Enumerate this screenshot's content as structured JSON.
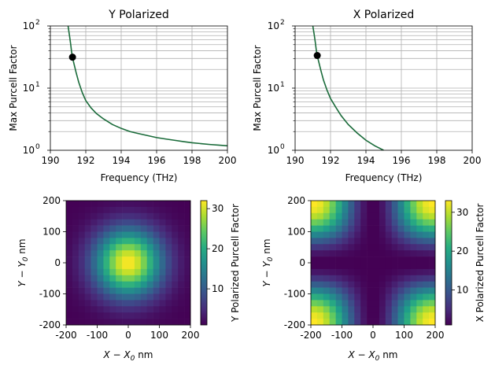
{
  "chart_data": [
    {
      "type": "line",
      "title": "Y Polarized",
      "xlabel": "Frequency (THz)",
      "ylabel": "Max Purcell Factor",
      "xlim": [
        190,
        200
      ],
      "ylim": [
        1,
        100
      ],
      "yscale": "log",
      "grid": "both (major and minor)",
      "xticks": [
        "190",
        "192",
        "194",
        "196",
        "198",
        "200"
      ],
      "yticks": [
        "10^0",
        "10^1",
        "10^2"
      ],
      "line_color": "#1a6b3a",
      "series": [
        {
          "x": [
            191.0,
            191.08,
            191.15,
            191.2,
            191.3,
            191.45,
            191.6,
            191.8,
            192.0,
            192.3,
            192.6,
            193.0,
            193.5,
            194.0,
            194.5,
            195.0,
            195.5,
            196.0,
            196.5,
            197.0,
            197.5,
            198.0,
            198.5,
            199.0,
            199.5,
            200.0
          ],
          "y": [
            100,
            70,
            50,
            38,
            27,
            18,
            12.5,
            8.5,
            6.3,
            4.8,
            3.9,
            3.2,
            2.6,
            2.25,
            2.0,
            1.85,
            1.72,
            1.6,
            1.52,
            1.45,
            1.38,
            1.32,
            1.28,
            1.24,
            1.21,
            1.18
          ]
        }
      ],
      "marker": {
        "x": 191.25,
        "y": 31.5
      }
    },
    {
      "type": "line",
      "title": "X Polarized",
      "xlabel": "Frequency (THz)",
      "ylabel": "Max Purcell Factor",
      "xlim": [
        190,
        200
      ],
      "ylim": [
        1,
        100
      ],
      "yscale": "log",
      "grid": "both (major and minor)",
      "xticks": [
        "190",
        "192",
        "194",
        "196",
        "198",
        "200"
      ],
      "yticks": [
        "10^0",
        "10^1",
        "10^2"
      ],
      "line_color": "#1a6b3a",
      "series": [
        {
          "x": [
            191.0,
            191.08,
            191.15,
            191.2,
            191.3,
            191.45,
            191.6,
            191.8,
            192.0,
            192.3,
            192.6,
            193.0,
            193.5,
            194.0,
            194.5,
            195.0
          ],
          "y": [
            100,
            72,
            52,
            40,
            29,
            19.5,
            13.5,
            9.3,
            6.8,
            4.9,
            3.6,
            2.6,
            1.9,
            1.45,
            1.18,
            1.0
          ]
        }
      ],
      "marker": {
        "x": 191.25,
        "y": 33.5
      }
    },
    {
      "type": "heatmap",
      "xlabel_main": "X − X",
      "xlabel_sub": "0",
      "xlabel_unit": " nm",
      "ylabel_main": "Y − Y",
      "ylabel_sub": "0",
      "ylabel_unit": " nm",
      "xlim": [
        -200,
        200
      ],
      "ylim": [
        -200,
        200
      ],
      "xticks": [
        "-200",
        "-100",
        "0",
        "100",
        "200"
      ],
      "yticks": [
        "-200",
        "-100",
        "0",
        "100",
        "200"
      ],
      "grid_size": 20,
      "colormap": "viridis",
      "colorbar_label": "Y Polarized Purcell Factor",
      "colorbar_range": [
        1,
        32
      ],
      "colorbar_ticks": [
        "10",
        "20",
        "30"
      ],
      "pattern": "central peak ≈32 at (0,0), falling to ≈1 at corners"
    },
    {
      "type": "heatmap",
      "xlabel_main": "X − X",
      "xlabel_sub": "0",
      "xlabel_unit": " nm",
      "ylabel_main": "Y − Y",
      "ylabel_sub": "0",
      "ylabel_unit": " nm",
      "xlim": [
        -200,
        200
      ],
      "ylim": [
        -200,
        200
      ],
      "xticks": [
        "-200",
        "-100",
        "0",
        "100",
        "200"
      ],
      "yticks": [
        "-200",
        "-100",
        "0",
        "100",
        "200"
      ],
      "grid_size": 20,
      "colormap": "viridis",
      "colorbar_label": "X Polarized Purcell Factor",
      "colorbar_range": [
        1,
        33
      ],
      "colorbar_ticks": [
        "10",
        "20",
        "30"
      ],
      "pattern": "minimum along x=0 and y=0 lines, maxima ≈33 toward the four corners"
    }
  ]
}
